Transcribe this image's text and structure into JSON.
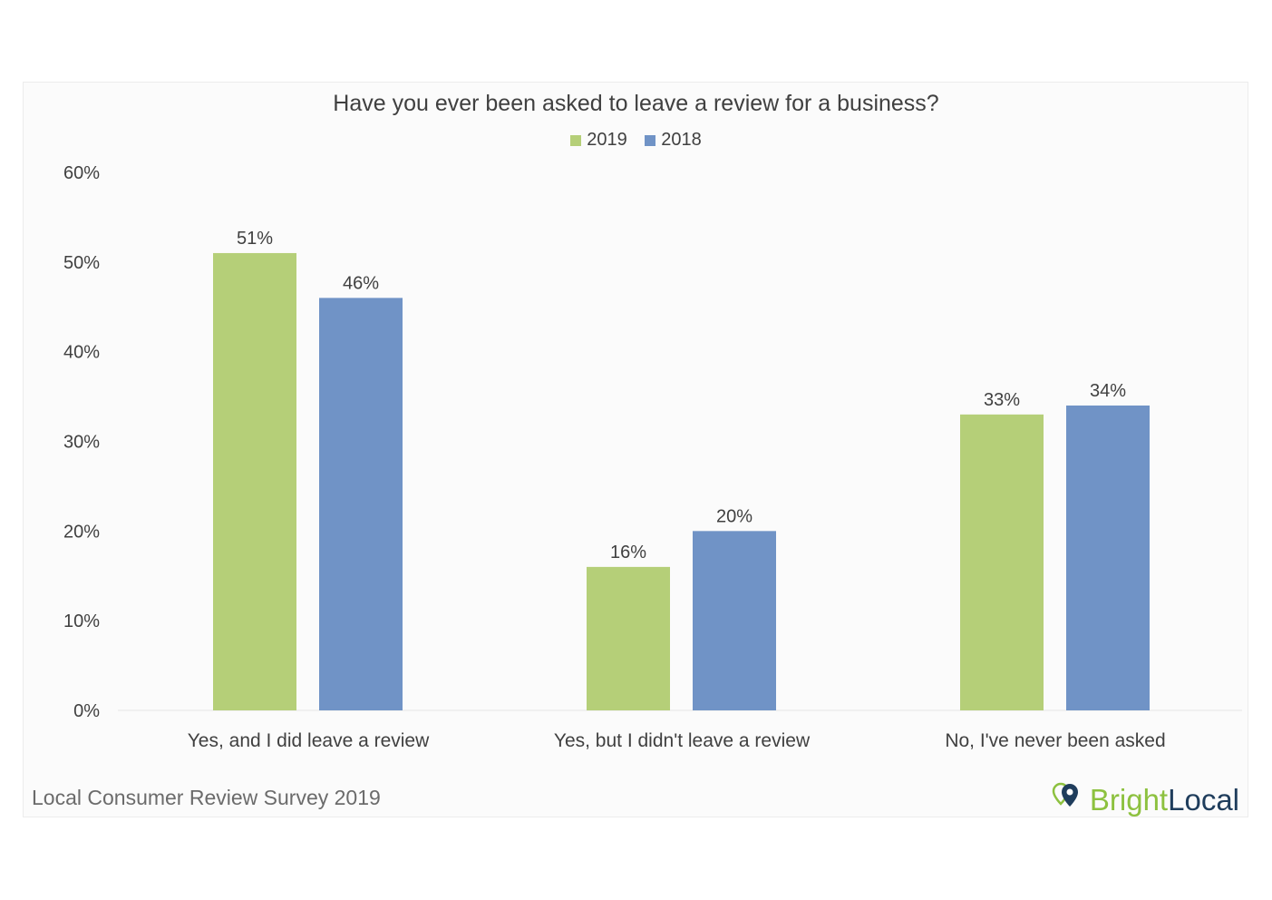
{
  "chart_data": {
    "type": "bar",
    "title": "Have you ever been asked to leave a review for a business?",
    "categories": [
      "Yes, and I did leave a review",
      "Yes, but I didn't leave a review",
      "No, I've never been asked"
    ],
    "series": [
      {
        "name": "2019",
        "values": [
          51,
          16,
          33
        ],
        "labels": [
          "51%",
          "16%",
          "33%"
        ],
        "color": "#b5cf78"
      },
      {
        "name": "2018",
        "values": [
          46,
          20,
          34
        ],
        "labels": [
          "46%",
          "20%",
          "34%"
        ],
        "color": "#7093c6"
      }
    ],
    "ylim": [
      0,
      60
    ],
    "yticks": [
      "0%",
      "10%",
      "20%",
      "30%",
      "40%",
      "50%",
      "60%"
    ],
    "xlabel": "",
    "ylabel": "",
    "grid": false,
    "legend_position": "top-center"
  },
  "footer": {
    "source": "Local Consumer Review Survey 2019",
    "logo_bright": "Bright",
    "logo_local": "Local"
  },
  "logo_icon": "location-pin-icon"
}
